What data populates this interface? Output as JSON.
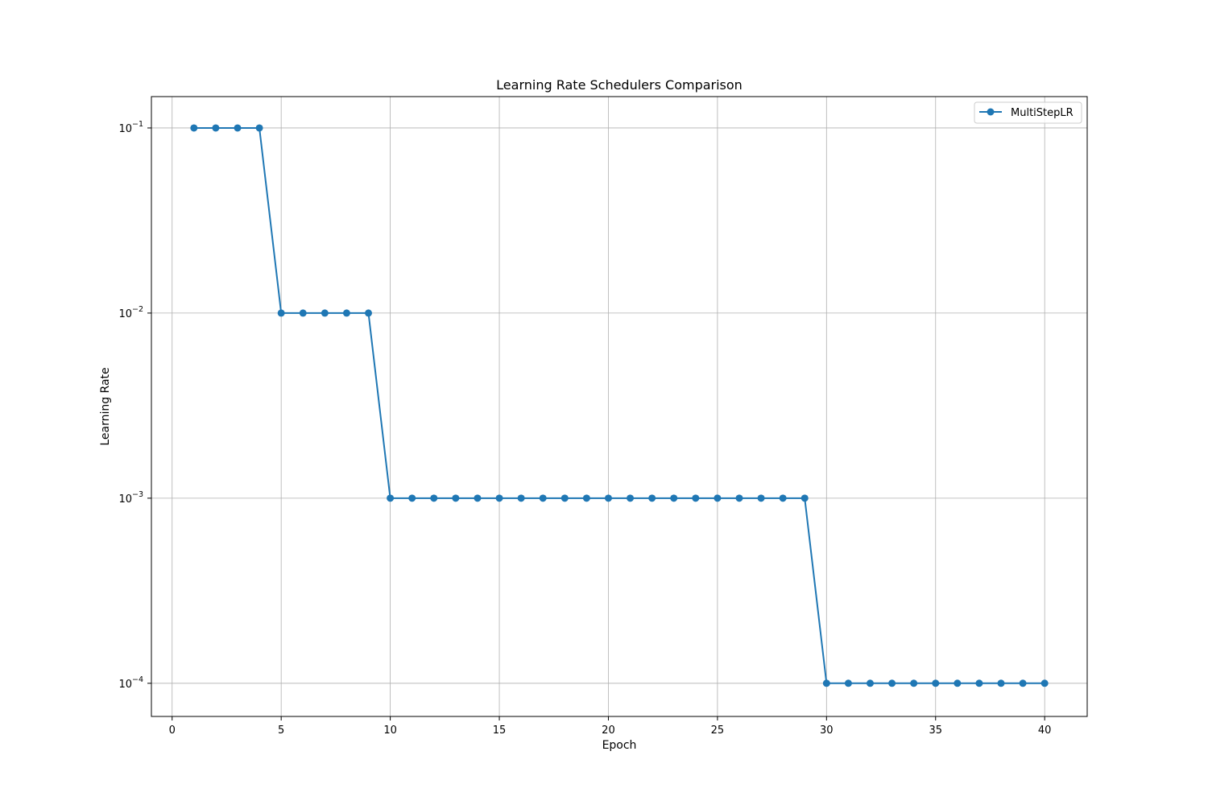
{
  "chart_data": {
    "type": "line",
    "title": "Learning Rate Schedulers Comparison",
    "xlabel": "Epoch",
    "ylabel": "Learning Rate",
    "yscale": "log",
    "grid": true,
    "legend_position": "top-right",
    "xlim": [
      -0.95,
      41.95
    ],
    "ylim": [
      6.62e-05,
      0.1477
    ],
    "xticks": [
      0,
      5,
      10,
      15,
      20,
      25,
      30,
      35,
      40
    ],
    "yticks": [
      {
        "value": 0.1,
        "base": "10",
        "exp": "−1"
      },
      {
        "value": 0.01,
        "base": "10",
        "exp": "−2"
      },
      {
        "value": 0.001,
        "base": "10",
        "exp": "−3"
      },
      {
        "value": 0.0001,
        "base": "10",
        "exp": "−4"
      }
    ],
    "series": [
      {
        "name": "MultiStepLR",
        "color": "#1f77b4",
        "marker": "circle",
        "x": [
          1,
          2,
          3,
          4,
          5,
          6,
          7,
          8,
          9,
          10,
          11,
          12,
          13,
          14,
          15,
          16,
          17,
          18,
          19,
          20,
          21,
          22,
          23,
          24,
          25,
          26,
          27,
          28,
          29,
          30,
          31,
          32,
          33,
          34,
          35,
          36,
          37,
          38,
          39,
          40
        ],
        "y": [
          0.1,
          0.1,
          0.1,
          0.1,
          0.01,
          0.01,
          0.01,
          0.01,
          0.01,
          0.001,
          0.001,
          0.001,
          0.001,
          0.001,
          0.001,
          0.001,
          0.001,
          0.001,
          0.001,
          0.001,
          0.001,
          0.001,
          0.001,
          0.001,
          0.001,
          0.001,
          0.001,
          0.001,
          0.001,
          0.0001,
          0.0001,
          0.0001,
          0.0001,
          0.0001,
          0.0001,
          0.0001,
          0.0001,
          0.0001,
          0.0001,
          0.0001
        ]
      }
    ]
  }
}
